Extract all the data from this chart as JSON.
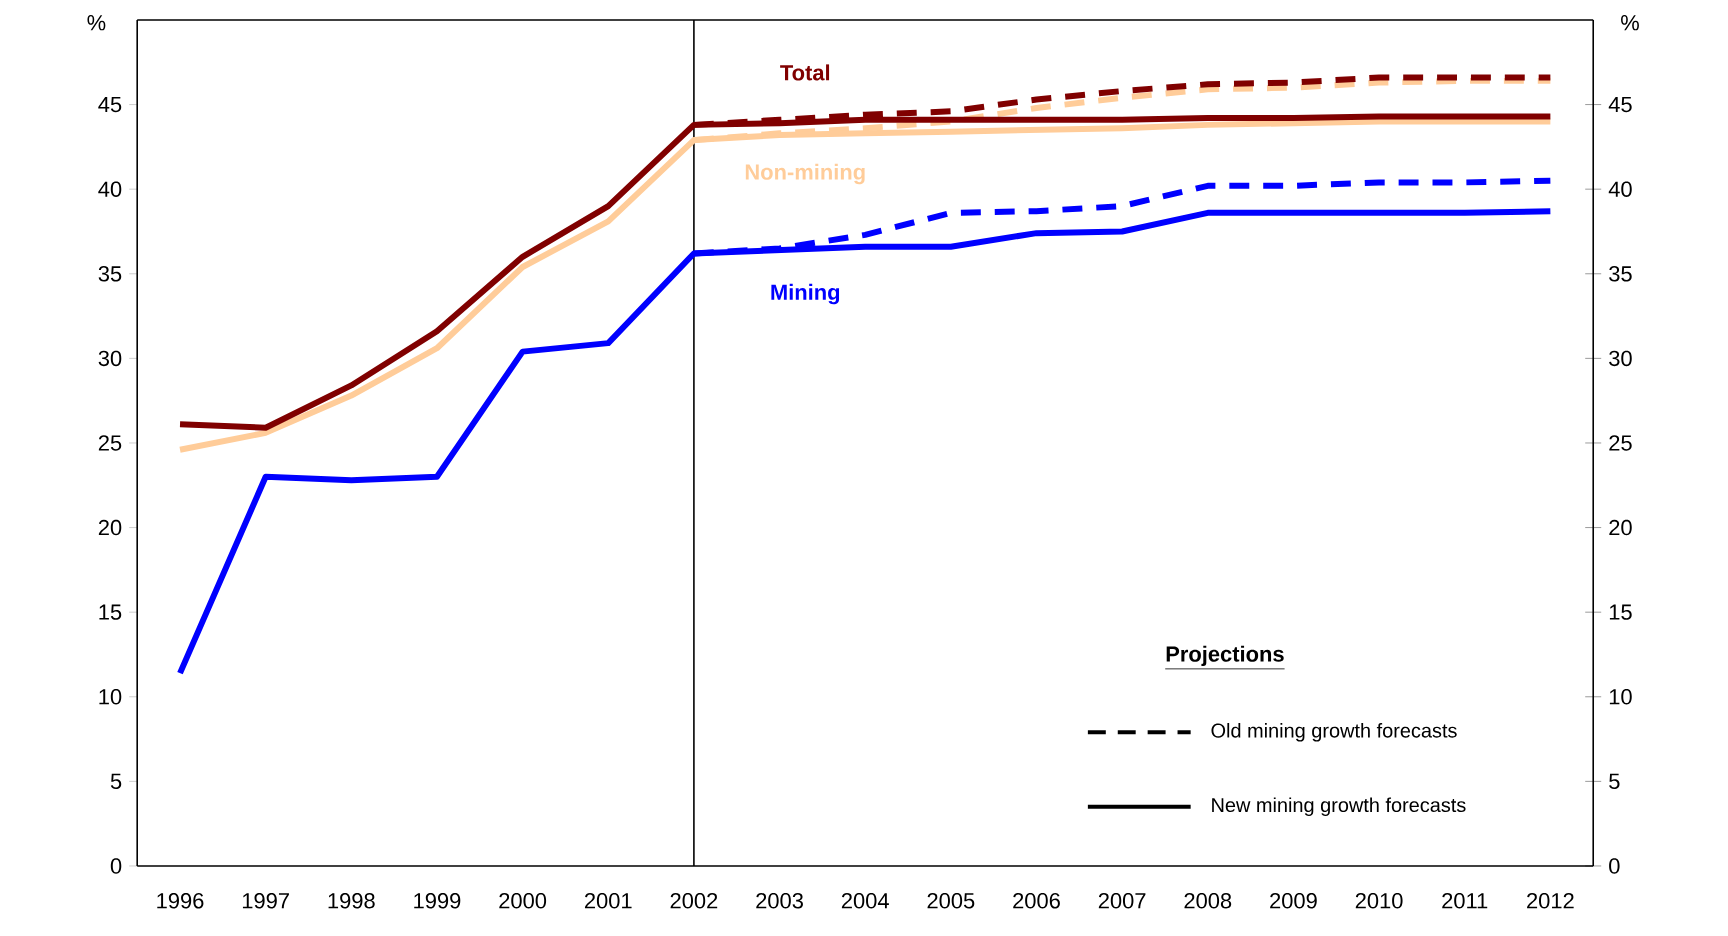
{
  "chart_data": {
    "type": "line",
    "ylabel": "%",
    "y2label": "%",
    "legend_title": "Projections",
    "categories": [
      "1996",
      "1997",
      "1998",
      "1999",
      "2000",
      "2001",
      "2002",
      "2003",
      "2004",
      "2005",
      "2006",
      "2007",
      "2008",
      "2009",
      "2010",
      "2011",
      "2012"
    ],
    "series": [
      {
        "color": "#ffcc99",
        "line_style": "dashed",
        "values": [
          null,
          null,
          null,
          null,
          null,
          null,
          42.9,
          43.3,
          43.6,
          44.0,
          44.8,
          45.4,
          45.9,
          46.0,
          46.3,
          46.4,
          46.4
        ]
      },
      {
        "color": "#800000",
        "line_style": "dashed",
        "values": [
          null,
          null,
          null,
          null,
          null,
          null,
          43.8,
          44.1,
          44.4,
          44.6,
          45.3,
          45.8,
          46.2,
          46.3,
          46.6,
          46.6,
          46.6
        ]
      },
      {
        "color": "#0000ff",
        "line_style": "dashed",
        "values": [
          null,
          null,
          null,
          null,
          null,
          null,
          36.2,
          36.5,
          37.3,
          38.6,
          38.7,
          39.0,
          40.2,
          40.2,
          40.4,
          40.4,
          40.5
        ]
      },
      {
        "name": "Non-mining",
        "color": "#ffcc99",
        "line_style": "solid",
        "values": [
          24.6,
          25.6,
          27.8,
          30.6,
          35.4,
          38.1,
          42.9,
          43.2,
          43.3,
          43.4,
          43.5,
          43.6,
          43.8,
          43.9,
          44.0,
          44.0,
          44.0
        ]
      },
      {
        "name": "Total",
        "color": "#800000",
        "line_style": "solid",
        "values": [
          26.1,
          25.9,
          28.4,
          31.6,
          36.0,
          39.0,
          43.8,
          43.9,
          44.1,
          44.1,
          44.1,
          44.1,
          44.2,
          44.2,
          44.3,
          44.3,
          44.3
        ]
      },
      {
        "name": "Mining",
        "color": "#0000ff",
        "line_style": "solid",
        "values": [
          11.4,
          23.0,
          22.8,
          23.0,
          30.4,
          30.9,
          36.2,
          36.4,
          36.6,
          36.6,
          37.4,
          37.5,
          38.6,
          38.6,
          38.6,
          38.6,
          38.7
        ]
      }
    ],
    "ylim": [
      0,
      50
    ],
    "yticks": [
      0,
      5,
      10,
      15,
      20,
      25,
      30,
      35,
      40,
      45
    ],
    "y2lim": [
      0,
      50
    ],
    "y2ticks": [
      0,
      5,
      10,
      15,
      20,
      25,
      30,
      35,
      40,
      45
    ],
    "ref_lines": [
      {
        "axis": "x",
        "value": "2002",
        "color": "#000000"
      }
    ],
    "annotations": [
      "Old mining growth forecasts",
      "New mining growth forecasts"
    ],
    "grid": false
  }
}
